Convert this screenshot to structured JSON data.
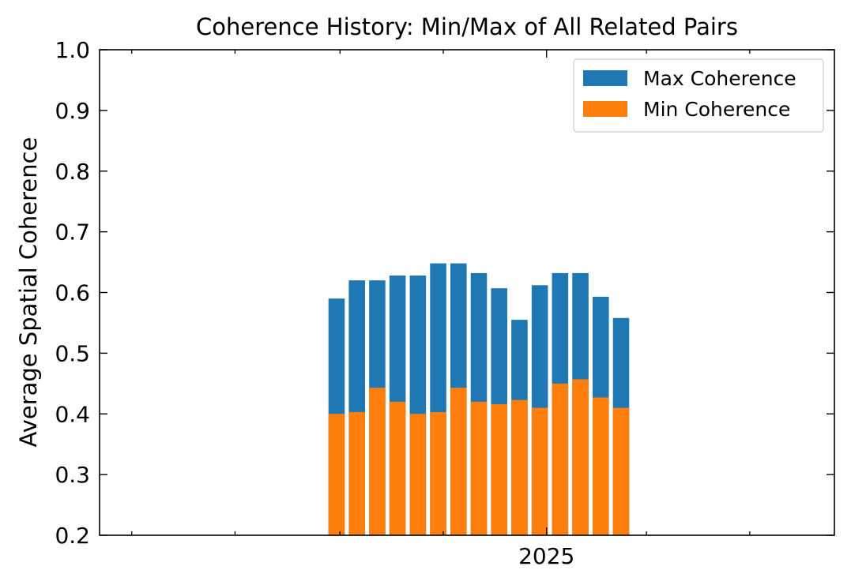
{
  "chart_data": {
    "type": "bar",
    "title": "Coherence History: Min/Max of All Related Pairs",
    "xlabel": "",
    "ylabel": "Average Spatial Coherence",
    "ylim": [
      0.2,
      1.0
    ],
    "xlim": [
      "2024-04-12",
      "2025-06-20"
    ],
    "yticks": [
      "0.2",
      "0.3",
      "0.4",
      "0.5",
      "0.6",
      "0.7",
      "0.8",
      "0.9",
      "1.0"
    ],
    "xticks": [
      {
        "date": "2025-01-01",
        "label": "2025"
      }
    ],
    "grid": false,
    "legend_position": "top-right",
    "stacked_overlay": true,
    "x": [
      "2024-08-30",
      "2024-09-11",
      "2024-09-23",
      "2024-10-05",
      "2024-10-17",
      "2024-10-29",
      "2024-11-10",
      "2024-11-22",
      "2024-12-04",
      "2024-12-16",
      "2024-12-28",
      "2025-01-09",
      "2025-01-21",
      "2025-02-02",
      "2025-02-14"
    ],
    "series": [
      {
        "name": "Max Coherence",
        "color": "#1f77b4",
        "values": [
          0.59,
          0.62,
          0.62,
          0.628,
          0.628,
          0.648,
          0.648,
          0.632,
          0.607,
          0.555,
          0.612,
          0.632,
          0.632,
          0.593,
          0.558
        ]
      },
      {
        "name": "Min Coherence",
        "color": "#ff7f0e",
        "values": [
          0.4,
          0.403,
          0.443,
          0.42,
          0.4,
          0.403,
          0.443,
          0.42,
          0.416,
          0.423,
          0.41,
          0.45,
          0.457,
          0.427,
          0.41
        ]
      }
    ]
  }
}
